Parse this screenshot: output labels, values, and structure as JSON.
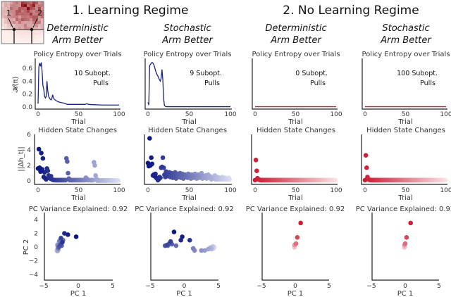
{
  "inset": {
    "label_1": "1",
    "label_2": "2"
  },
  "regimes": [
    {
      "title": "1. Learning Regime"
    },
    {
      "title": "2. No Learning Regime"
    }
  ],
  "colors": {
    "blue_start": "#0b1680",
    "blue_end": "#dde0f4",
    "red_start": "#cc1f35",
    "red_end": "#fbe3e7",
    "line_blue": "#1a237e",
    "line_red": "#c0283c"
  },
  "columns": [
    {
      "head1": "Deterministic",
      "head2": "Arm Better",
      "annot1": "10 Subopt.",
      "annot2": "Pulls",
      "palette": "blue"
    },
    {
      "head1": "Stochastic",
      "head2": "Arm Better",
      "annot1": "9 Subopt.",
      "annot2": "Pulls",
      "palette": "blue"
    },
    {
      "head1": "Deterministic",
      "head2": "Arm Better",
      "annot1": "0 Subopt.",
      "annot2": "Pulls",
      "palette": "red"
    },
    {
      "head1": "Stochastic",
      "head2": "Arm Better",
      "annot1": "100 Subopt.",
      "annot2": "Pulls",
      "palette": "red"
    }
  ],
  "chart_data": [
    {
      "type": "line",
      "title": "Policy Entropy over Trials",
      "xlabel": "Trial",
      "ylabel": "𝓗(π)",
      "xlim": [
        0,
        100
      ],
      "ylim": [
        0,
        0.75
      ],
      "xticks": [
        "0",
        "50",
        "100"
      ],
      "yticks": [
        "0.0",
        "0.2",
        "0.4",
        "0.6"
      ],
      "series": [
        {
          "name": "Learning / Deterministic",
          "x": [
            0,
            1,
            2,
            3,
            4,
            5,
            6,
            7,
            8,
            9,
            10,
            11,
            12,
            13,
            14,
            15,
            16,
            17,
            18,
            19,
            20,
            22,
            25,
            28,
            32,
            36,
            40,
            50,
            58,
            60,
            62,
            70,
            80,
            90,
            100
          ],
          "y": [
            0.05,
            0.62,
            0.68,
            0.63,
            0.69,
            0.55,
            0.33,
            0.28,
            0.17,
            0.14,
            0.16,
            0.4,
            0.25,
            0.17,
            0.14,
            0.12,
            0.11,
            0.13,
            0.19,
            0.14,
            0.12,
            0.1,
            0.08,
            0.07,
            0.06,
            0.04,
            0.04,
            0.04,
            0.04,
            0.05,
            0.04,
            0.035,
            0.03,
            0.03,
            0.03
          ]
        },
        {
          "name": "Learning / Stochastic",
          "x": [
            0,
            1,
            2,
            3,
            4,
            5,
            6,
            7,
            8,
            9,
            10,
            11,
            12,
            13,
            14,
            15,
            16,
            17,
            18,
            19,
            20,
            21,
            22,
            30,
            50,
            100
          ],
          "y": [
            0.07,
            0.03,
            0.64,
            0.66,
            0.68,
            0.69,
            0.68,
            0.66,
            0.62,
            0.57,
            0.53,
            0.5,
            0.48,
            0.45,
            0.42,
            0.4,
            0.45,
            0.58,
            0.42,
            0.12,
            0.02,
            0.01,
            0.005,
            0.005,
            0.005,
            0.005
          ]
        },
        {
          "name": "No Learning / Deterministic",
          "x": [
            0,
            100
          ],
          "y": [
            0.005,
            0.005
          ]
        },
        {
          "name": "No Learning / Stochastic",
          "x": [
            0,
            100
          ],
          "y": [
            0.005,
            0.005
          ]
        }
      ]
    },
    {
      "type": "scatter",
      "title": "Hidden State Changes",
      "xlabel": "Trial",
      "ylabel": "||Δh_t||",
      "xlim": [
        0,
        100
      ],
      "ylim": [
        0,
        6
      ],
      "xticks": [
        "0",
        "50",
        "100"
      ],
      "yticks": [
        "0",
        "2",
        "4",
        "6"
      ],
      "color_encodes": "trial (dark = early, light = late)",
      "series": [
        {
          "name": "Learning / Deterministic",
          "values": [
            1.6,
            4.1,
            1.7,
            1.2,
            3.6,
            1.5,
            2.9,
            0.5,
            1.1,
            0.3,
            0.2,
            1.6,
            1.3,
            0.7,
            0.4,
            0.3,
            0.6,
            0.2,
            0.15,
            0.12,
            0.1,
            0.1,
            0.1,
            0.1,
            0.1,
            0.1,
            0.1,
            0.1,
            0.1,
            0.1,
            0.1,
            0.1,
            0.1,
            0.1,
            0.1,
            2.9,
            2.5,
            1.0,
            0.3,
            0.1,
            0.1,
            0.1,
            0.1,
            0.1,
            0.1,
            0.1,
            0.1,
            0.1,
            0.1,
            0.1,
            0.1,
            0.1,
            0.1,
            0.1,
            0.1,
            0.1,
            0.1,
            0.1,
            0.1,
            0.4,
            0.3,
            0.1,
            0.1,
            0.1,
            0.1,
            0.1,
            0.1,
            0.1,
            0.1,
            2.4,
            2.0,
            0.7,
            0.3,
            0.05,
            0.05,
            0.05,
            0.05,
            0.05,
            0.05,
            0.05,
            0.05,
            0.05,
            0.05,
            0.05,
            0.05,
            0.05,
            0.05,
            0.05,
            0.05,
            0.05,
            0.05,
            0.05,
            0.05,
            0.05,
            0.05,
            0.05,
            0.05,
            0.05,
            0.05,
            0.05
          ]
        },
        {
          "name": "Learning / Stochastic",
          "values": [
            2.3,
            1.9,
            5.5,
            2.0,
            3.0,
            2.2,
            0.7,
            0.8,
            0.6,
            0.9,
            0.4,
            0.3,
            0.1,
            0.2,
            0.5,
            0.4,
            1.7,
            1.8,
            3.0,
            1.7,
            0.8,
            0.5,
            1.2,
            0.6,
            0.9,
            0.7,
            1.1,
            0.5,
            0.8,
            1.0,
            0.4,
            0.9,
            0.6,
            1.1,
            0.3,
            0.8,
            0.9,
            0.5,
            0.7,
            1.0,
            0.4,
            0.6,
            0.9,
            0.3,
            0.7,
            0.5,
            0.8,
            0.6,
            0.4,
            0.9,
            0.5,
            0.7,
            0.3,
            0.8,
            0.6,
            0.4,
            0.7,
            0.9,
            0.5,
            0.3,
            0.6,
            0.8,
            0.4,
            0.5,
            0.7,
            1.0,
            0.3,
            0.5,
            0.6,
            0.4,
            0.7,
            0.3,
            0.5,
            0.8,
            0.4,
            0.6,
            0.3,
            0.2,
            0.5,
            0.3,
            0.4,
            0.7,
            0.2,
            0.3,
            0.5,
            0.2,
            0.4,
            0.3,
            0.2,
            0.3,
            0.5,
            0.2,
            0.3,
            0.4,
            0.2,
            0.3,
            0.2,
            0.3,
            0.4,
            0.2
          ]
        },
        {
          "name": "No Learning / Deterministic",
          "values": [
            0.1,
            2.7,
            1.3,
            0.35,
            0.2,
            0.15,
            0.12,
            0.1,
            0.1,
            0.1,
            0.1,
            0.1,
            0.1,
            0.1,
            0.1,
            0.1,
            0.1,
            0.1,
            0.1,
            0.1,
            0.1,
            0.1,
            0.1,
            0.1,
            0.1,
            0.1,
            0.1,
            0.1,
            0.1,
            0.1,
            0.1,
            0.1,
            0.1,
            0.1,
            0.1,
            0.1,
            0.1,
            0.1,
            0.1,
            0.1,
            0.1,
            0.1,
            0.1,
            0.1,
            0.1,
            0.1,
            0.1,
            0.1,
            0.1,
            0.1,
            0.1,
            0.1,
            0.1,
            0.1,
            0.1,
            0.1,
            0.1,
            0.1,
            0.1,
            0.1,
            0.1,
            0.1,
            0.1,
            0.1,
            0.1,
            0.1,
            0.1,
            0.1,
            0.1,
            0.1,
            0.1,
            0.1,
            0.1,
            0.1,
            0.1,
            0.1,
            0.1,
            0.1,
            0.1,
            0.1,
            0.1,
            0.1,
            0.1,
            0.1,
            0.1,
            0.1,
            0.1,
            0.1,
            0.1,
            0.1,
            0.1,
            0.1,
            0.1,
            0.1,
            0.1,
            0.1,
            0.1,
            0.1,
            0.1,
            0.1
          ]
        },
        {
          "name": "No Learning / Stochastic",
          "values": [
            0.1,
            3.3,
            1.7,
            0.5,
            0.25,
            0.15,
            0.12,
            0.1,
            0.1,
            0.1,
            0.1,
            0.1,
            0.1,
            0.1,
            0.1,
            0.1,
            0.1,
            0.1,
            0.1,
            0.1,
            0.1,
            0.1,
            0.1,
            0.1,
            0.1,
            0.1,
            0.1,
            0.1,
            0.1,
            0.1,
            0.1,
            0.1,
            0.1,
            0.1,
            0.1,
            0.1,
            0.1,
            0.1,
            0.1,
            0.1,
            0.1,
            0.1,
            0.1,
            0.1,
            0.1,
            0.1,
            0.1,
            0.1,
            0.1,
            0.1,
            0.1,
            0.1,
            0.1,
            0.1,
            0.1,
            0.1,
            0.1,
            0.1,
            0.1,
            0.1,
            0.1,
            0.1,
            0.1,
            0.1,
            0.1,
            0.1,
            0.1,
            0.1,
            0.1,
            0.1,
            0.1,
            0.1,
            0.1,
            0.1,
            0.1,
            0.1,
            0.1,
            0.1,
            0.1,
            0.1,
            0.1,
            0.1,
            0.1,
            0.1,
            0.1,
            0.1,
            0.1,
            0.1,
            0.1,
            0.1,
            0.1,
            0.1,
            0.1,
            0.1,
            0.1,
            0.1,
            0.1,
            0.1,
            0.1,
            0.1
          ]
        }
      ]
    },
    {
      "type": "scatter",
      "title": "PC Variance Explained: 0.92",
      "xlabel": "PC 1",
      "ylabel": "PC 2",
      "xlim": [
        -5,
        5
      ],
      "ylim": [
        -5,
        5
      ],
      "xticks": [
        "−5",
        "0",
        "5"
      ],
      "yticks": [
        "−4",
        "−2",
        "0",
        "2",
        "4"
      ],
      "color_encodes": "trial order (dark = early, light = late)",
      "series": [
        {
          "name": "Learning / Deterministic",
          "points": [
            [
              -0.3,
              1.5
            ],
            [
              -1.5,
              1.8
            ],
            [
              -2.0,
              2.0
            ],
            [
              -2.3,
              0.7
            ],
            [
              -2.5,
              1.3
            ],
            [
              -2.6,
              0.3
            ],
            [
              -2.8,
              0.0
            ],
            [
              -2.4,
              0.2
            ],
            [
              -2.2,
              1.0
            ],
            [
              -2.7,
              0.9
            ],
            [
              -2.9,
              -0.2
            ],
            [
              -3.0,
              0.3
            ],
            [
              -2.6,
              0.5
            ],
            [
              -2.9,
              -0.4
            ],
            [
              -3.0,
              -0.6
            ],
            [
              -2.8,
              0.7
            ],
            [
              -3.0,
              -0.3
            ],
            [
              -3.1,
              -0.5
            ],
            [
              -3.0,
              -0.1
            ],
            [
              -2.9,
              -0.5
            ]
          ]
        },
        {
          "name": "Learning / Stochastic",
          "points": [
            [
              -1.5,
              2.2
            ],
            [
              -0.3,
              1.5
            ],
            [
              -0.5,
              1.0
            ],
            [
              0.8,
              1.0
            ],
            [
              -2.0,
              0.8
            ],
            [
              -2.5,
              0.3
            ],
            [
              -2.8,
              0.2
            ],
            [
              -2.2,
              0.5
            ],
            [
              -1.8,
              0.4
            ],
            [
              -1.2,
              0.2
            ],
            [
              -2.4,
              0.2
            ],
            [
              1.3,
              -0.2
            ],
            [
              1.5,
              -0.5
            ],
            [
              2.5,
              -0.5
            ],
            [
              3.0,
              -0.5
            ],
            [
              3.5,
              -0.3
            ],
            [
              3.8,
              -0.1
            ],
            [
              4.0,
              -0.3
            ],
            [
              4.1,
              0.0
            ],
            [
              4.2,
              0.1
            ],
            [
              4.3,
              -0.2
            ],
            [
              4.4,
              0.0
            ]
          ]
        },
        {
          "name": "No Learning / Deterministic",
          "points": [
            [
              0.8,
              3.5
            ],
            [
              0.3,
              1.4
            ],
            [
              0.1,
              0.5
            ],
            [
              -0.1,
              0.3
            ],
            [
              -0.1,
              0.0
            ],
            [
              -0.15,
              -0.1
            ]
          ]
        },
        {
          "name": "No Learning / Stochastic",
          "points": [
            [
              0.8,
              3.5
            ],
            [
              0.2,
              1.4
            ],
            [
              0.0,
              0.5
            ],
            [
              -0.1,
              0.3
            ],
            [
              -0.1,
              0.0
            ],
            [
              -0.15,
              -0.1
            ]
          ]
        }
      ]
    }
  ]
}
